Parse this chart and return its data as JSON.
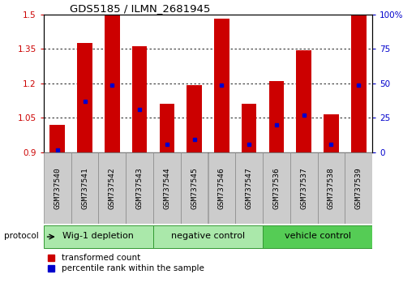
{
  "title": "GDS5185 / ILMN_2681945",
  "samples": [
    "GSM737540",
    "GSM737541",
    "GSM737542",
    "GSM737543",
    "GSM737544",
    "GSM737545",
    "GSM737546",
    "GSM737547",
    "GSM737536",
    "GSM737537",
    "GSM737538",
    "GSM737539"
  ],
  "red_values": [
    1.02,
    1.375,
    1.5,
    1.36,
    1.11,
    1.19,
    1.48,
    1.11,
    1.21,
    1.345,
    1.065,
    1.5
  ],
  "blue_values": [
    0.91,
    1.12,
    1.19,
    1.085,
    0.935,
    0.955,
    1.19,
    0.935,
    1.02,
    1.06,
    0.935,
    1.19
  ],
  "y_min": 0.9,
  "y_max": 1.5,
  "y_ticks_left": [
    0.9,
    1.05,
    1.2,
    1.35,
    1.5
  ],
  "y_ticks_right": [
    0,
    25,
    50,
    75,
    100
  ],
  "groups": [
    {
      "label": "Wig-1 depletion",
      "start": 0,
      "end": 3
    },
    {
      "label": "negative control",
      "start": 4,
      "end": 7
    },
    {
      "label": "vehicle control",
      "start": 8,
      "end": 11
    }
  ],
  "bar_color": "#cc0000",
  "marker_color": "#0000cc",
  "bar_width": 0.55,
  "protocol_label": "protocol",
  "legend_red": "transformed count",
  "legend_blue": "percentile rank within the sample",
  "sample_bg": "#cccccc",
  "group_color_light": "#aae8aa",
  "group_color_dark": "#55cc55",
  "group_border": "#339933"
}
